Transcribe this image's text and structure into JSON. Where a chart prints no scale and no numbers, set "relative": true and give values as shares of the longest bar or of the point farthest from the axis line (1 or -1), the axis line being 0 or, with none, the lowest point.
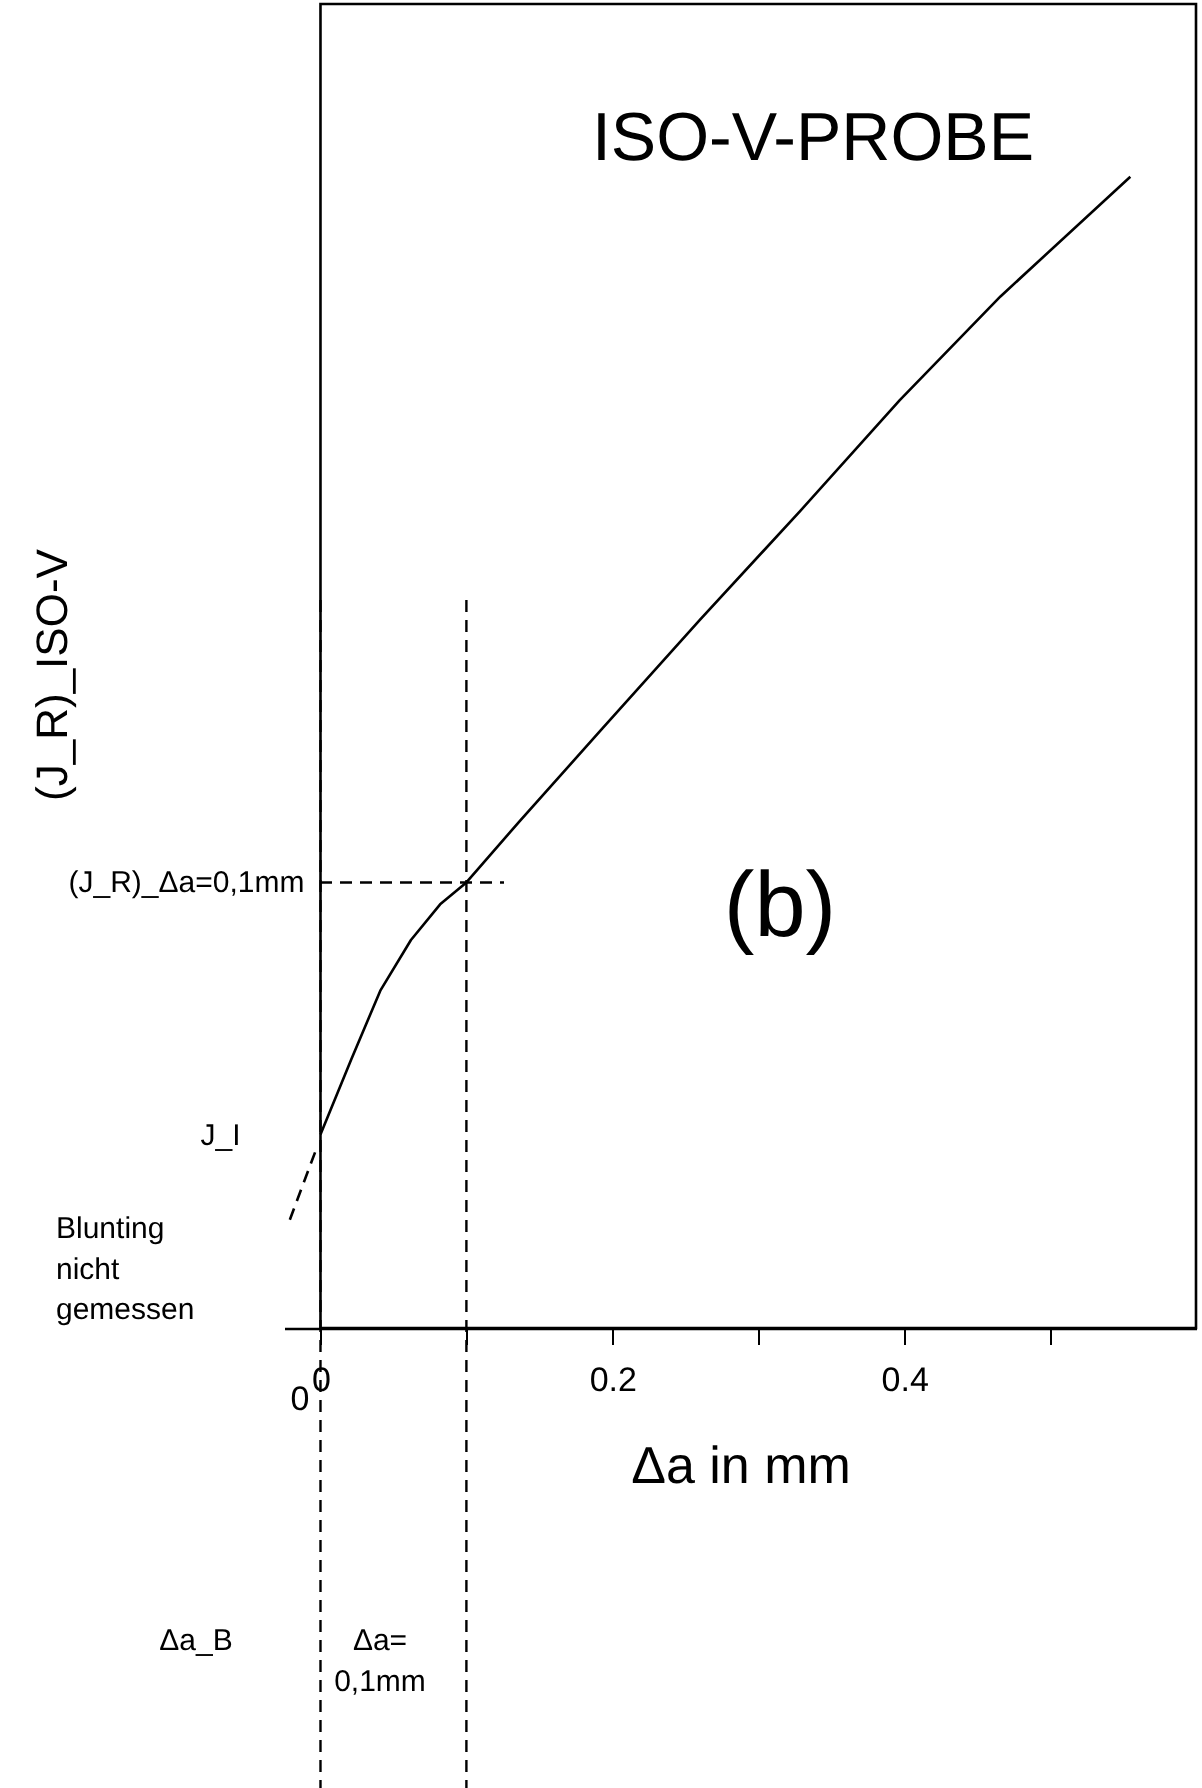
{
  "chart_data": {
    "type": "line",
    "title": "ISO-V-PROBE",
    "xlabel": "Δa in mm",
    "ylabel": "(J_R)_ISO-V",
    "relative": true,
    "xlim": [
      -0.025,
      0.6
    ],
    "xticks": [
      0,
      {
        "value": 0.1,
        "label": null
      },
      0.2,
      {
        "value": 0.3,
        "label": null
      },
      0.4,
      {
        "value": 0.5,
        "label": null
      }
    ],
    "grid": false,
    "marker": "none",
    "series": [
      {
        "color": "#000000",
        "line_style": "solid",
        "x": [
          0,
          0.021,
          0.041,
          0.062,
          0.082,
          0.1,
          0.137,
          0.192,
          0.26,
          0.329,
          0.397,
          0.466,
          0.555
        ],
        "values": [
          0.168,
          0.233,
          0.293,
          0.337,
          0.368,
          0.387,
          0.441,
          0.519,
          0.615,
          0.71,
          0.806,
          0.896,
          1.0
        ]
      },
      {
        "color": "#000000",
        "line_style": "dashed",
        "x": [
          -0.021,
          -0.003
        ],
        "values": [
          0.094,
          0.155
        ]
      }
    ],
    "ref_lines": [
      {
        "axis": "x",
        "value": 0.1,
        "line_style": "dashed",
        "color": "#000000"
      },
      {
        "axis": "x",
        "value": 0,
        "line_style": "dashed",
        "color": "#000000"
      },
      {
        "axis": "y",
        "value": 0.387,
        "line_style": "dashed",
        "color": "#000000"
      }
    ],
    "annotations": [
      "(b)",
      {
        "text": "J_I",
        "x": 0,
        "y": 0.168
      },
      {
        "text": "(J_R)_Δa=0,1mm",
        "x": 0,
        "y": 0.387
      },
      "Blunting\nnicht\ngemessen",
      "0",
      "Δa_B",
      "Δa=\n0,1mm"
    ]
  }
}
